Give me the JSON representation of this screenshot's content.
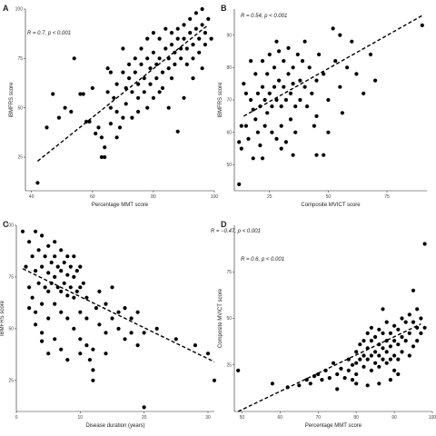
{
  "chart_data": [
    {
      "type": "scatter",
      "panel": "A",
      "annotation": "R = 0.7, p < 0.001",
      "xlabel": "Percentage MMT score",
      "ylabel": "IBMFRS score",
      "xlim": [
        38,
        100
      ],
      "ylim": [
        8,
        100
      ],
      "xticks": [
        40,
        60,
        80,
        100
      ],
      "yticks": [
        25,
        50,
        75,
        100
      ],
      "trend": {
        "x": [
          42,
          98
        ],
        "y": [
          23,
          92
        ]
      },
      "points": [
        [
          42,
          12
        ],
        [
          45,
          40
        ],
        [
          47,
          57
        ],
        [
          49,
          45
        ],
        [
          51,
          50
        ],
        [
          53,
          48
        ],
        [
          54,
          75
        ],
        [
          56,
          57
        ],
        [
          57,
          57
        ],
        [
          58,
          43
        ],
        [
          59,
          43
        ],
        [
          60,
          60
        ],
        [
          61,
          37
        ],
        [
          62,
          40
        ],
        [
          63,
          35
        ],
        [
          63,
          25
        ],
        [
          64,
          30
        ],
        [
          64,
          25
        ],
        [
          65,
          70
        ],
        [
          65,
          58
        ],
        [
          66,
          50
        ],
        [
          66,
          68
        ],
        [
          67,
          55
        ],
        [
          68,
          62
        ],
        [
          68,
          48
        ],
        [
          69,
          40
        ],
        [
          70,
          80
        ],
        [
          70,
          68
        ],
        [
          71,
          60
        ],
        [
          71,
          52
        ],
        [
          72,
          72
        ],
        [
          72,
          65
        ],
        [
          73,
          58
        ],
        [
          73,
          45
        ],
        [
          74,
          75
        ],
        [
          74,
          68
        ],
        [
          75,
          62
        ],
        [
          75,
          55
        ],
        [
          76,
          80
        ],
        [
          76,
          72
        ],
        [
          77,
          65
        ],
        [
          77,
          58
        ],
        [
          78,
          85
        ],
        [
          78,
          75
        ],
        [
          79,
          70
        ],
        [
          79,
          62
        ],
        [
          80,
          88
        ],
        [
          80,
          78
        ],
        [
          81,
          72
        ],
        [
          81,
          65
        ],
        [
          82,
          85
        ],
        [
          82,
          75
        ],
        [
          83,
          68
        ],
        [
          83,
          60
        ],
        [
          84,
          90
        ],
        [
          84,
          80
        ],
        [
          85,
          75
        ],
        [
          85,
          70
        ],
        [
          86,
          88
        ],
        [
          86,
          82
        ],
        [
          87,
          78
        ],
        [
          87,
          72
        ],
        [
          88,
          90
        ],
        [
          88,
          85
        ],
        [
          89,
          80
        ],
        [
          89,
          75
        ],
        [
          90,
          92
        ],
        [
          90,
          85
        ],
        [
          91,
          80
        ],
        [
          91,
          72
        ],
        [
          92,
          95
        ],
        [
          92,
          88
        ],
        [
          93,
          82
        ],
        [
          93,
          75
        ],
        [
          94,
          98
        ],
        [
          94,
          90
        ],
        [
          95,
          85
        ],
        [
          95,
          78
        ],
        [
          96,
          92
        ],
        [
          96,
          100
        ],
        [
          97,
          88
        ],
        [
          97,
          82
        ],
        [
          98,
          95
        ],
        [
          99,
          85
        ],
        [
          88,
          38
        ],
        [
          85,
          50
        ],
        [
          80,
          55
        ],
        [
          75,
          48
        ],
        [
          68,
          35
        ],
        [
          90,
          55
        ],
        [
          93,
          65
        ],
        [
          96,
          70
        ],
        [
          78,
          50
        ],
        [
          82,
          58
        ],
        [
          86,
          65
        ],
        [
          70,
          45
        ],
        [
          66,
          42
        ]
      ]
    },
    {
      "type": "scatter",
      "panel": "B",
      "annotation": "R = 0.54, p < 0.001",
      "xlabel": "Composite MVICT score",
      "ylabel": "IBMFRS score",
      "xlim": [
        10,
        92
      ],
      "ylim": [
        42,
        98
      ],
      "xticks": [
        25,
        50,
        75
      ],
      "yticks": [
        50,
        60,
        70,
        80,
        90
      ],
      "trend": {
        "x": [
          14,
          90
        ],
        "y": [
          65,
          96
        ]
      },
      "points": [
        [
          12,
          57
        ],
        [
          12,
          44
        ],
        [
          13,
          62
        ],
        [
          13,
          55
        ],
        [
          14,
          75
        ],
        [
          15,
          72
        ],
        [
          15,
          62
        ],
        [
          16,
          58
        ],
        [
          17,
          82
        ],
        [
          17,
          70
        ],
        [
          18,
          67
        ],
        [
          18,
          52
        ],
        [
          19,
          78
        ],
        [
          19,
          64
        ],
        [
          20,
          72
        ],
        [
          20,
          60
        ],
        [
          21,
          68
        ],
        [
          21,
          56
        ],
        [
          22,
          82
        ],
        [
          22,
          74
        ],
        [
          23,
          70
        ],
        [
          23,
          62
        ],
        [
          24,
          78
        ],
        [
          24,
          66
        ],
        [
          25,
          84
        ],
        [
          25,
          72
        ],
        [
          26,
          68
        ],
        [
          26,
          60
        ],
        [
          27,
          80
        ],
        [
          27,
          74
        ],
        [
          28,
          70
        ],
        [
          28,
          58
        ],
        [
          29,
          85
        ],
        [
          29,
          76
        ],
        [
          30,
          68
        ],
        [
          30,
          62
        ],
        [
          31,
          82
        ],
        [
          31,
          74
        ],
        [
          32,
          70
        ],
        [
          32,
          57
        ],
        [
          33,
          86
        ],
        [
          33,
          78
        ],
        [
          34,
          72
        ],
        [
          34,
          64
        ],
        [
          35,
          80
        ],
        [
          35,
          75
        ],
        [
          36,
          68
        ],
        [
          36,
          60
        ],
        [
          37,
          84
        ],
        [
          38,
          76
        ],
        [
          38,
          70
        ],
        [
          39,
          82
        ],
        [
          40,
          74
        ],
        [
          41,
          68
        ],
        [
          42,
          80
        ],
        [
          43,
          72
        ],
        [
          44,
          62
        ],
        [
          45,
          76
        ],
        [
          46,
          84
        ],
        [
          48,
          78
        ],
        [
          50,
          70
        ],
        [
          52,
          92
        ],
        [
          53,
          82
        ],
        [
          55,
          74
        ],
        [
          56,
          66
        ],
        [
          58,
          80
        ],
        [
          60,
          88
        ],
        [
          62,
          78
        ],
        [
          65,
          72
        ],
        [
          68,
          84
        ],
        [
          70,
          76
        ],
        [
          28,
          88
        ],
        [
          40,
          88
        ],
        [
          45,
          65
        ],
        [
          50,
          60
        ],
        [
          55,
          90
        ],
        [
          90,
          93
        ],
        [
          22,
          52
        ],
        [
          30,
          55
        ],
        [
          35,
          53
        ],
        [
          45,
          53
        ],
        [
          48,
          53
        ]
      ]
    },
    {
      "type": "scatter",
      "panel": "C",
      "annotation": "R = −0.47, p < 0.001",
      "xlabel": "Disease duration (years)",
      "ylabel": "IBMFRS score",
      "xlim": [
        0,
        31
      ],
      "ylim": [
        10,
        100
      ],
      "xticks": [
        0,
        10,
        20,
        30
      ],
      "yticks": [
        25,
        50,
        75,
        100
      ],
      "trend": {
        "x": [
          1,
          31
        ],
        "y": [
          79,
          34
        ]
      },
      "points": [
        [
          1,
          97
        ],
        [
          1.5,
          80
        ],
        [
          2,
          92
        ],
        [
          2,
          70
        ],
        [
          2.5,
          85
        ],
        [
          2.5,
          65
        ],
        [
          3,
          97
        ],
        [
          3,
          78
        ],
        [
          3,
          58
        ],
        [
          3.5,
          88
        ],
        [
          3.5,
          72
        ],
        [
          4,
          95
        ],
        [
          4,
          80
        ],
        [
          4,
          62
        ],
        [
          4,
          48
        ],
        [
          4.5,
          85
        ],
        [
          4.5,
          70
        ],
        [
          5,
          90
        ],
        [
          5,
          77
        ],
        [
          5,
          68
        ],
        [
          5,
          55
        ],
        [
          5.5,
          82
        ],
        [
          5.5,
          72
        ],
        [
          6,
          92
        ],
        [
          6,
          85
        ],
        [
          6,
          75
        ],
        [
          6,
          62
        ],
        [
          6,
          45
        ],
        [
          6.5,
          80
        ],
        [
          6.5,
          70
        ],
        [
          7,
          88
        ],
        [
          7,
          78
        ],
        [
          7,
          68
        ],
        [
          7,
          58
        ],
        [
          7,
          40
        ],
        [
          7.5,
          82
        ],
        [
          7.5,
          72
        ],
        [
          8,
          85
        ],
        [
          8,
          76
        ],
        [
          8,
          66
        ],
        [
          8,
          55
        ],
        [
          8.5,
          80
        ],
        [
          8.5,
          70
        ],
        [
          9,
          85
        ],
        [
          9,
          75
        ],
        [
          9,
          65
        ],
        [
          9,
          50
        ],
        [
          9.5,
          78
        ],
        [
          9.5,
          68
        ],
        [
          10,
          80
        ],
        [
          10,
          70
        ],
        [
          10,
          58
        ],
        [
          10,
          45
        ],
        [
          10.5,
          72
        ],
        [
          11,
          65
        ],
        [
          11,
          55
        ],
        [
          11,
          42
        ],
        [
          11.5,
          35
        ],
        [
          12,
          30
        ],
        [
          12,
          25
        ],
        [
          12.5,
          60
        ],
        [
          13,
          68
        ],
        [
          13,
          52
        ],
        [
          14,
          62
        ],
        [
          14,
          48
        ],
        [
          15,
          70
        ],
        [
          15,
          55
        ],
        [
          16,
          50
        ],
        [
          17,
          60
        ],
        [
          17,
          45
        ],
        [
          18,
          55
        ],
        [
          19,
          42
        ],
        [
          20,
          48
        ],
        [
          20,
          12
        ],
        [
          22,
          50
        ],
        [
          25,
          45
        ],
        [
          28,
          42
        ],
        [
          30,
          38
        ],
        [
          31,
          25
        ],
        [
          3,
          52
        ],
        [
          4,
          44
        ],
        [
          5,
          38
        ],
        [
          2,
          60
        ],
        [
          8,
          35
        ],
        [
          10,
          38
        ],
        [
          12,
          40
        ],
        [
          14,
          38
        ],
        [
          16,
          58
        ],
        [
          18,
          48
        ],
        [
          19,
          58
        ]
      ]
    },
    {
      "type": "scatter",
      "panel": "D",
      "annotation": "R = 0.6, p < 0.001",
      "xlabel": "Percentage MMT score",
      "ylabel": "Composite MVICT score",
      "xlim": [
        48,
        100
      ],
      "ylim": [
        0,
        100
      ],
      "xticks": [
        50,
        60,
        70,
        80,
        90,
        100
      ],
      "yticks": [
        25,
        50,
        75
      ],
      "trend": {
        "x": [
          49,
          97
        ],
        "y": [
          0,
          47
        ]
      },
      "points": [
        [
          49,
          22
        ],
        [
          58,
          15
        ],
        [
          62,
          13
        ],
        [
          65,
          14
        ],
        [
          67,
          17
        ],
        [
          68,
          15
        ],
        [
          69,
          19
        ],
        [
          70,
          20
        ],
        [
          71,
          17
        ],
        [
          72,
          22
        ],
        [
          73,
          18
        ],
        [
          74,
          26
        ],
        [
          75,
          20
        ],
        [
          76,
          23
        ],
        [
          77,
          18
        ],
        [
          78,
          28
        ],
        [
          78,
          22
        ],
        [
          79,
          25
        ],
        [
          79,
          17
        ],
        [
          80,
          32
        ],
        [
          80,
          26
        ],
        [
          80,
          20
        ],
        [
          81,
          36
        ],
        [
          81,
          28
        ],
        [
          82,
          38
        ],
        [
          82,
          30
        ],
        [
          82,
          24
        ],
        [
          83,
          42
        ],
        [
          83,
          34
        ],
        [
          83,
          28
        ],
        [
          84,
          45
        ],
        [
          84,
          38
        ],
        [
          84,
          30
        ],
        [
          84,
          22
        ],
        [
          85,
          40
        ],
        [
          85,
          32
        ],
        [
          85,
          26
        ],
        [
          86,
          44
        ],
        [
          86,
          36
        ],
        [
          86,
          30
        ],
        [
          86,
          24
        ],
        [
          87,
          55
        ],
        [
          87,
          42
        ],
        [
          87,
          34
        ],
        [
          87,
          28
        ],
        [
          88,
          48
        ],
        [
          88,
          38
        ],
        [
          88,
          32
        ],
        [
          88,
          26
        ],
        [
          89,
          42
        ],
        [
          89,
          35
        ],
        [
          89,
          28
        ],
        [
          90,
          46
        ],
        [
          90,
          38
        ],
        [
          90,
          30
        ],
        [
          90,
          22
        ],
        [
          91,
          44
        ],
        [
          91,
          36
        ],
        [
          91,
          28
        ],
        [
          92,
          50
        ],
        [
          92,
          40
        ],
        [
          92,
          32
        ],
        [
          93,
          48
        ],
        [
          93,
          38
        ],
        [
          94,
          52
        ],
        [
          94,
          42
        ],
        [
          95,
          65
        ],
        [
          95,
          48
        ],
        [
          96,
          55
        ],
        [
          96,
          45
        ],
        [
          97,
          50
        ],
        [
          97,
          42
        ],
        [
          98,
          90
        ],
        [
          98,
          45
        ],
        [
          91,
          20
        ],
        [
          89,
          17
        ],
        [
          86,
          15
        ],
        [
          83,
          14
        ],
        [
          80,
          15
        ],
        [
          75,
          12
        ],
        [
          94,
          30
        ],
        [
          95,
          35
        ],
        [
          96,
          38
        ]
      ]
    }
  ]
}
